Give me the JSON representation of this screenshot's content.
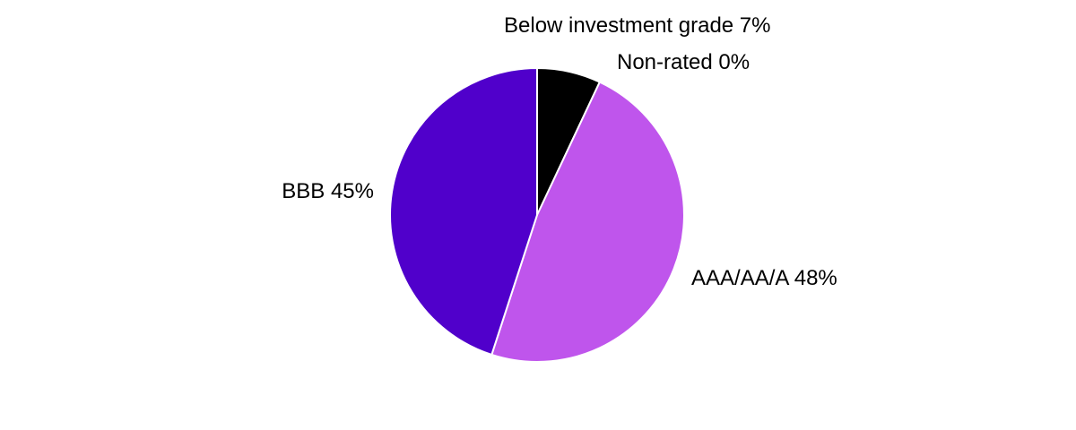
{
  "chart_data": {
    "type": "pie",
    "start_angle_deg": 0,
    "direction": "clockwise",
    "slice_border_color": "#ffffff",
    "slices": [
      {
        "name": "AAA/AA/A",
        "value": 48,
        "label": "AAA/AA/A 48%",
        "color": "#bf55ec"
      },
      {
        "name": "BBB",
        "value": 45,
        "label": "BBB 45%",
        "color": "#5000cb"
      },
      {
        "name": "Below investment grade",
        "value": 7,
        "label": "Below investment grade  7%",
        "color": "#000000"
      },
      {
        "name": "Non-rated",
        "value": 0,
        "label": "Non-rated 0%",
        "color": "#9b9b9b"
      }
    ]
  }
}
